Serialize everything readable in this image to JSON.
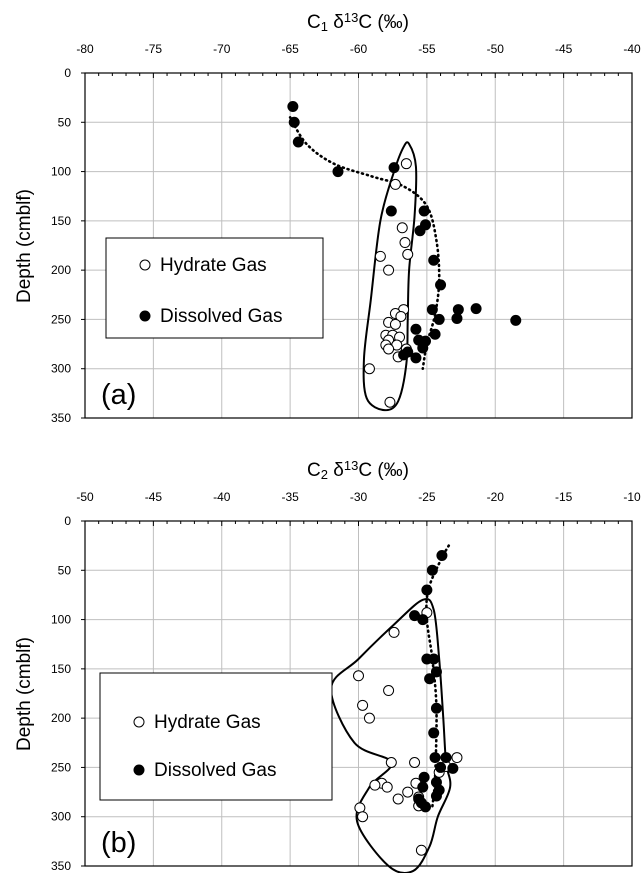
{
  "chart_data": [
    {
      "type": "scatter",
      "panel_label": "(a)",
      "xlabel": "C1 δ13C (‰)",
      "xlabel_parts": {
        "base": "C",
        "sub": "1",
        "mid": " δ",
        "sup": "13",
        "end": "C (‰)"
      },
      "ylabel": "Depth (cmblf)",
      "xlim": [
        -80,
        -40
      ],
      "ylim": [
        350,
        0
      ],
      "x_ticks": [
        "-80",
        "-75",
        "-70",
        "-65",
        "-60",
        "-55",
        "-50",
        "-45",
        "-40"
      ],
      "y_ticks": [
        "0",
        "50",
        "100",
        "150",
        "200",
        "250",
        "300",
        "350"
      ],
      "grid": true,
      "legend_placement": "left-middle",
      "series": [
        {
          "name": "Hydrate Gas",
          "marker": "open-circle",
          "color": "#000000",
          "points": [
            [
              -56.5,
              92
            ],
            [
              -57.3,
              113
            ],
            [
              -56.8,
              157
            ],
            [
              -56.6,
              172
            ],
            [
              -56.4,
              184
            ],
            [
              -58.4,
              186
            ],
            [
              -57.8,
              200
            ],
            [
              -56.7,
              240
            ],
            [
              -57.3,
              244
            ],
            [
              -56.9,
              247
            ],
            [
              -57.8,
              253
            ],
            [
              -57.3,
              255
            ],
            [
              -58.0,
              266
            ],
            [
              -57.5,
              266
            ],
            [
              -57.0,
              268
            ],
            [
              -57.8,
              271
            ],
            [
              -58.0,
              276
            ],
            [
              -57.2,
              276
            ],
            [
              -57.8,
              280
            ],
            [
              -56.5,
              280
            ],
            [
              -57.1,
              288
            ],
            [
              -59.2,
              300
            ],
            [
              -57.7,
              334
            ]
          ]
        },
        {
          "name": "Dissolved Gas",
          "marker": "filled-circle",
          "color": "#000000",
          "points": [
            [
              -64.8,
              34
            ],
            [
              -64.7,
              50
            ],
            [
              -64.4,
              70
            ],
            [
              -61.5,
              100
            ],
            [
              -57.4,
              96
            ],
            [
              -57.6,
              140
            ],
            [
              -55.2,
              140
            ],
            [
              -55.1,
              154
            ],
            [
              -55.5,
              160
            ],
            [
              -54.5,
              190
            ],
            [
              -54.0,
              215
            ],
            [
              -54.6,
              240
            ],
            [
              -52.7,
              240
            ],
            [
              -51.4,
              239
            ],
            [
              -52.8,
              249
            ],
            [
              -54.1,
              250
            ],
            [
              -48.5,
              251
            ],
            [
              -55.8,
              260
            ],
            [
              -54.4,
              265
            ],
            [
              -55.6,
              271
            ],
            [
              -55.1,
              272
            ],
            [
              -55.3,
              279
            ],
            [
              -56.4,
              283
            ],
            [
              -56.7,
              286
            ],
            [
              -55.8,
              289
            ]
          ]
        }
      ],
      "curves": [
        {
          "type": "dotted-trend",
          "points": [
            [
              -65.0,
              45
            ],
            [
              -63.8,
              72
            ],
            [
              -61.8,
              92
            ],
            [
              -59.0,
              105
            ],
            [
              -56.7,
              115
            ],
            [
              -55.0,
              135
            ],
            [
              -54.3,
              170
            ],
            [
              -54.1,
              210
            ],
            [
              -54.4,
              245
            ],
            [
              -55.0,
              275
            ],
            [
              -55.3,
              300
            ]
          ]
        },
        {
          "type": "closed-envelope",
          "points": [
            [
              -56.3,
              72
            ],
            [
              -55.8,
              95
            ],
            [
              -55.9,
              145
            ],
            [
              -56.3,
              200
            ],
            [
              -56.4,
              250
            ],
            [
              -56.5,
              295
            ],
            [
              -57.1,
              333
            ],
            [
              -58.1,
              342
            ],
            [
              -59.4,
              330
            ],
            [
              -59.6,
              290
            ],
            [
              -59.1,
              230
            ],
            [
              -58.4,
              150
            ],
            [
              -57.4,
              100
            ],
            [
              -56.7,
              75
            ]
          ]
        }
      ]
    },
    {
      "type": "scatter",
      "panel_label": "(b)",
      "xlabel": "C2 δ13C (‰)",
      "xlabel_parts": {
        "base": "C",
        "sub": "2",
        "mid": " δ",
        "sup": "13",
        "end": "C (‰)"
      },
      "ylabel": "Depth (cmblf)",
      "xlim": [
        -50,
        -10
      ],
      "ylim": [
        350,
        0
      ],
      "x_ticks": [
        "-50",
        "-45",
        "-40",
        "-35",
        "-30",
        "-25",
        "-20",
        "-15",
        "-10"
      ],
      "y_ticks": [
        "0",
        "50",
        "100",
        "150",
        "200",
        "250",
        "300",
        "350"
      ],
      "grid": true,
      "legend_placement": "left-lower",
      "series": [
        {
          "name": "Hydrate Gas",
          "marker": "open-circle",
          "color": "#000000",
          "points": [
            [
              -25.0,
              93
            ],
            [
              -27.4,
              113
            ],
            [
              -30.0,
              157
            ],
            [
              -27.8,
              172
            ],
            [
              -29.7,
              187
            ],
            [
              -29.2,
              200
            ],
            [
              -22.8,
              240
            ],
            [
              -27.6,
              245
            ],
            [
              -25.9,
              245
            ],
            [
              -23.6,
              249
            ],
            [
              -24.1,
              255
            ],
            [
              -28.3,
              266
            ],
            [
              -28.8,
              268
            ],
            [
              -25.8,
              266
            ],
            [
              -27.9,
              270
            ],
            [
              -26.4,
              275
            ],
            [
              -25.6,
              280
            ],
            [
              -27.1,
              282
            ],
            [
              -25.6,
              289
            ],
            [
              -29.9,
              291
            ],
            [
              -29.7,
              300
            ],
            [
              -25.4,
              334
            ]
          ]
        },
        {
          "name": "Dissolved Gas",
          "marker": "filled-circle",
          "color": "#000000",
          "points": [
            [
              -23.9,
              35
            ],
            [
              -24.6,
              50
            ],
            [
              -25.0,
              70
            ],
            [
              -25.9,
              96
            ],
            [
              -25.3,
              100
            ],
            [
              -25.0,
              140
            ],
            [
              -24.5,
              140
            ],
            [
              -24.3,
              153
            ],
            [
              -24.8,
              160
            ],
            [
              -24.3,
              190
            ],
            [
              -24.5,
              215
            ],
            [
              -24.4,
              240
            ],
            [
              -23.6,
              240
            ],
            [
              -24.0,
              250
            ],
            [
              -23.1,
              251
            ],
            [
              -25.2,
              260
            ],
            [
              -24.3,
              265
            ],
            [
              -25.3,
              270
            ],
            [
              -24.1,
              273
            ],
            [
              -24.3,
              279
            ],
            [
              -25.6,
              282
            ],
            [
              -25.4,
              286
            ],
            [
              -25.1,
              290
            ]
          ]
        }
      ],
      "curves": [
        {
          "type": "dotted-trend",
          "points": [
            [
              -23.4,
              25
            ],
            [
              -24.0,
              40
            ],
            [
              -24.9,
              70
            ],
            [
              -25.0,
              100
            ],
            [
              -24.6,
              140
            ],
            [
              -24.3,
              190
            ],
            [
              -24.4,
              260
            ],
            [
              -24.6,
              290
            ]
          ]
        },
        {
          "type": "closed-envelope",
          "points": [
            [
              -25.3,
              80
            ],
            [
              -24.5,
              90
            ],
            [
              -24.1,
              140
            ],
            [
              -23.8,
              200
            ],
            [
              -23.6,
              245
            ],
            [
              -23.3,
              270
            ],
            [
              -24.2,
              300
            ],
            [
              -24.8,
              330
            ],
            [
              -26.0,
              355
            ],
            [
              -27.8,
              350
            ],
            [
              -30.1,
              305
            ],
            [
              -29.2,
              270
            ],
            [
              -27.6,
              245
            ],
            [
              -30.3,
              225
            ],
            [
              -32.0,
              170
            ],
            [
              -30.0,
              140
            ],
            [
              -27.4,
              105
            ]
          ]
        }
      ]
    }
  ]
}
